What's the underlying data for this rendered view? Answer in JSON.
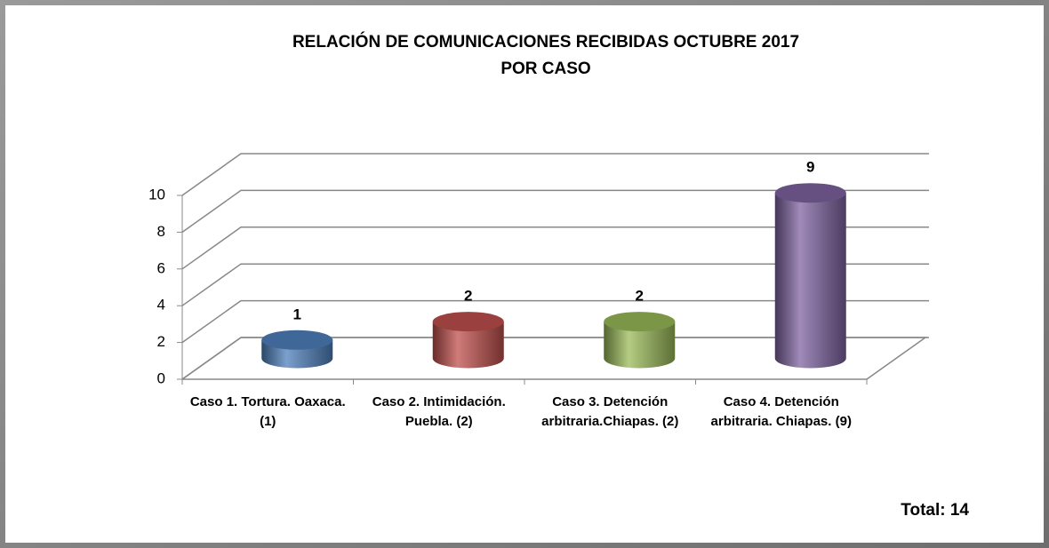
{
  "chart_data": {
    "type": "bar",
    "title": [
      "RELACIÓN DE COMUNICACIONES RECIBIDAS OCTUBRE 2017",
      "POR CASO"
    ],
    "categories": [
      "Caso 1. Tortura. Oaxaca. (1)",
      "Caso 2. Intimidación. Puebla. (2)",
      "Caso 3. Detención arbitraria.Chiapas. (2)",
      "Caso 4. Detención arbitraria. Chiapas. (9)"
    ],
    "values": [
      1,
      2,
      2,
      9
    ],
    "colors": [
      "#4f81bd",
      "#c0504d",
      "#9bbb59",
      "#8064a2"
    ],
    "ylim": [
      0,
      10
    ],
    "yticks": [
      0,
      2,
      4,
      6,
      8,
      10
    ],
    "grid": true,
    "annotation": "Total: 14"
  }
}
